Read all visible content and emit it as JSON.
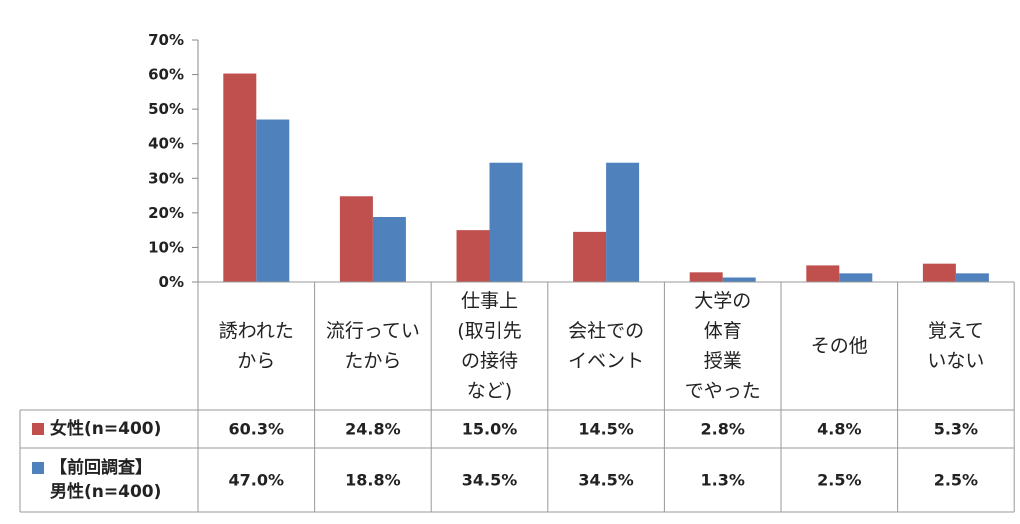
{
  "chart_data": {
    "type": "bar",
    "categories": [
      [
        "誘われた",
        "から"
      ],
      [
        "流行ってい",
        "たから"
      ],
      [
        "仕事上",
        "(取引先",
        "の接待",
        "など)"
      ],
      [
        "会社での",
        "イベント"
      ],
      [
        "大学の",
        "体育",
        "授業",
        "でやった"
      ],
      [
        "その他"
      ],
      [
        "覚えて",
        "いない"
      ]
    ],
    "series": [
      {
        "name": "女性(n=400)",
        "name_lines": [
          "女性(n=400)"
        ],
        "color": "#c0504d",
        "values": [
          60.3,
          24.8,
          15.0,
          14.5,
          2.8,
          4.8,
          5.3
        ],
        "labels": [
          "60.3%",
          "24.8%",
          "15.0%",
          "14.5%",
          "2.8%",
          "4.8%",
          "5.3%"
        ]
      },
      {
        "name": "【前回調査】男性(n=400)",
        "name_lines": [
          "【前回調査】",
          "男性(n=400)"
        ],
        "color": "#4f81bd",
        "values": [
          47.0,
          18.8,
          34.5,
          34.5,
          1.3,
          2.5,
          2.5
        ],
        "labels": [
          "47.0%",
          "18.8%",
          "34.5%",
          "34.5%",
          "1.3%",
          "2.5%",
          "2.5%"
        ]
      }
    ],
    "y_ticks": [
      "0%",
      "10%",
      "20%",
      "30%",
      "40%",
      "50%",
      "60%",
      "70%"
    ],
    "ylim": [
      0,
      70
    ],
    "title": "",
    "xlabel": "",
    "ylabel": "",
    "grid": false,
    "legend": "table-left"
  }
}
